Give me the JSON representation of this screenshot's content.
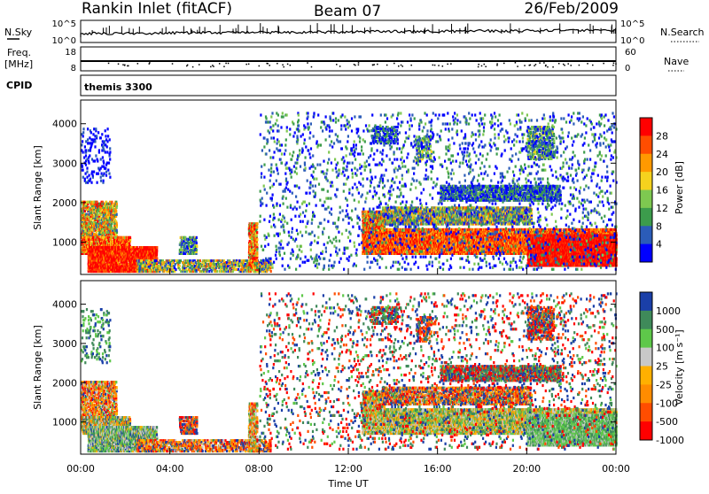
{
  "header": {
    "station": "Rankin Inlet (fitACF)",
    "beam": "Beam 07",
    "date": "26/Feb/2009"
  },
  "top_panels": {
    "nsky_label": "N.Sky",
    "nsky_ticks": [
      "10^5",
      "10^0"
    ],
    "nsearch_label": "N.Search",
    "nsearch_ticks": [
      "10^5",
      "10^0"
    ],
    "freq_label": "Freq.",
    "freq_unit": "[MHz]",
    "freq_ticks": [
      "18",
      "8"
    ],
    "nave_label": "Nave",
    "nave_ticks": [
      "60",
      "0"
    ],
    "cpid_label": "CPID",
    "cpid_value": "themis 3300"
  },
  "chart_data": [
    {
      "type": "heatmap",
      "ylabel": "Slant Range [km]",
      "ylim": [
        180,
        4600
      ],
      "yticks": [
        1000,
        2000,
        3000,
        4000
      ],
      "xlim": [
        0,
        24
      ],
      "colorbar": {
        "label": "Power [dB]",
        "ticks": [
          "28",
          "24",
          "20",
          "16",
          "12",
          "8",
          "4"
        ],
        "colors": [
          "#ff0000",
          "#ff4d00",
          "#ff9900",
          "#f5d21e",
          "#7ec850",
          "#3c9c4c",
          "#2b5cb8",
          "#0000ff"
        ]
      }
    },
    {
      "type": "heatmap",
      "ylabel": "Slant Range [km]",
      "ylim": [
        180,
        4600
      ],
      "yticks": [
        1000,
        2000,
        3000,
        4000
      ],
      "xlim": [
        0,
        24
      ],
      "xlabel": "Time UT",
      "xticks": [
        "00:00",
        "04:00",
        "08:00",
        "12:00",
        "16:00",
        "20:00",
        "00:00"
      ],
      "colorbar": {
        "label": "Velocity [m s⁻¹]",
        "ticks": [
          "1000",
          "500",
          "100",
          "25",
          "-25",
          "-100",
          "-500",
          "-1000"
        ],
        "colors": [
          "#1a3fa8",
          "#3f8a5a",
          "#5ec84a",
          "#c8c8c8",
          "#ffb000",
          "#ff8c00",
          "#ff4d00",
          "#ff0000"
        ]
      }
    }
  ]
}
